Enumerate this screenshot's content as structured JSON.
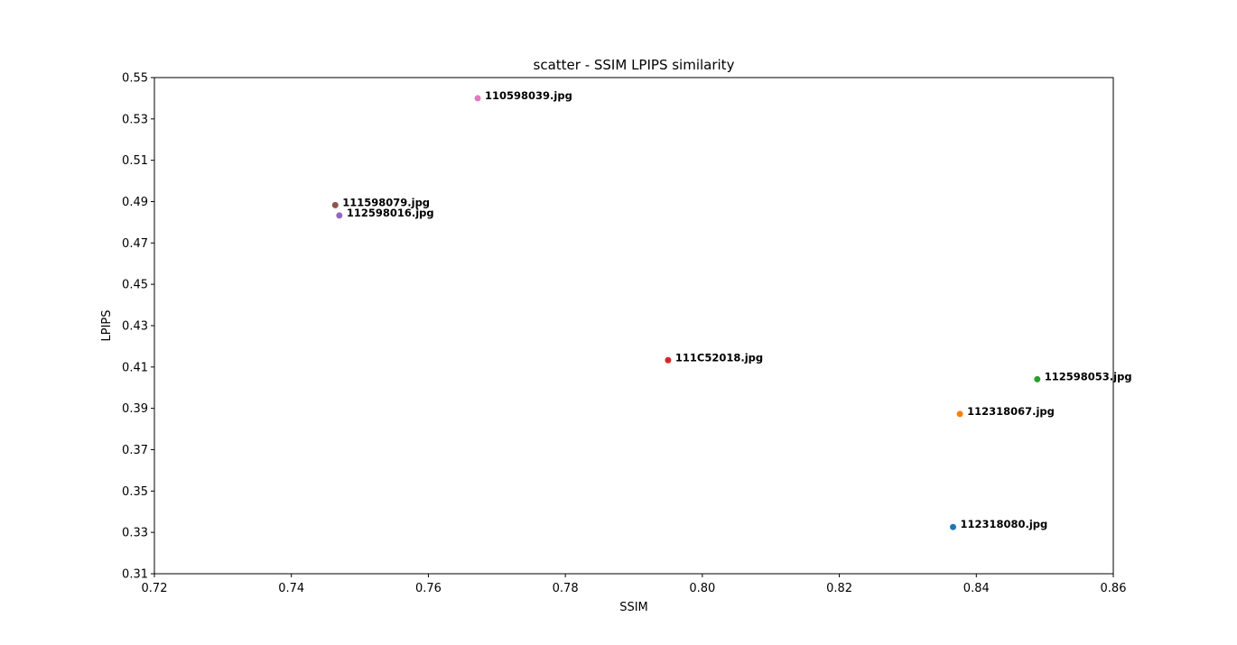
{
  "chart_data": {
    "type": "scatter",
    "title": "scatter - SSIM LPIPS similarity",
    "xlabel": "SSIM",
    "ylabel": "LPIPS",
    "xlim": [
      0.72,
      0.86
    ],
    "ylim": [
      0.31,
      0.55
    ],
    "xticks": [
      "0.72",
      "0.74",
      "0.76",
      "0.78",
      "0.80",
      "0.82",
      "0.84",
      "0.86"
    ],
    "yticks": [
      "0.31",
      "0.33",
      "0.35",
      "0.37",
      "0.39",
      "0.41",
      "0.43",
      "0.45",
      "0.47",
      "0.49",
      "0.51",
      "0.53",
      "0.55"
    ],
    "grid": false,
    "points": [
      {
        "label": "112318080.jpg",
        "x": 0.8366,
        "y": 0.3326,
        "color": "#1f77b4"
      },
      {
        "label": "112318067.jpg",
        "x": 0.8376,
        "y": 0.3873,
        "color": "#ff7f0e"
      },
      {
        "label": "112598053.jpg",
        "x": 0.8489,
        "y": 0.4041,
        "color": "#2ca02c"
      },
      {
        "label": "111C52018.jpg",
        "x": 0.795,
        "y": 0.4133,
        "color": "#d62728"
      },
      {
        "label": "112598016.jpg",
        "x": 0.747,
        "y": 0.4833,
        "color": "#9467bd"
      },
      {
        "label": "111598079.jpg",
        "x": 0.7464,
        "y": 0.4883,
        "color": "#8c564b"
      },
      {
        "label": "110598039.jpg",
        "x": 0.7672,
        "y": 0.54,
        "color": "#e377c2"
      }
    ]
  }
}
